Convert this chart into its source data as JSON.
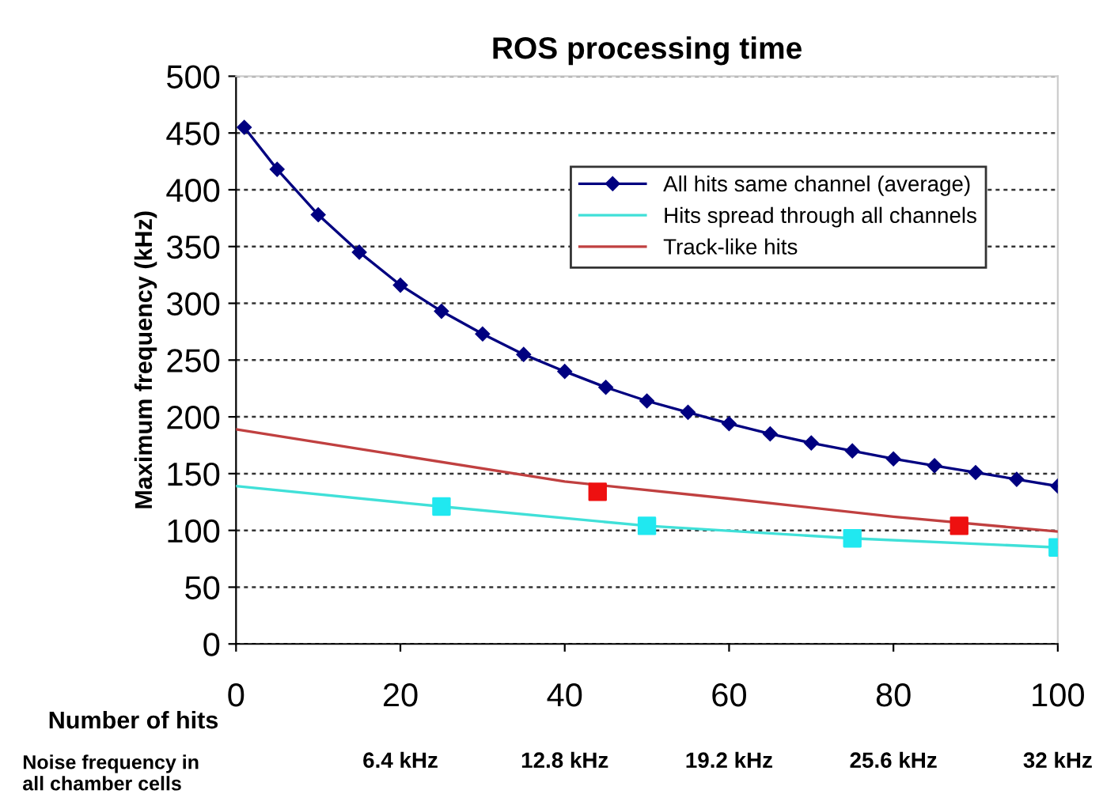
{
  "chart_data": {
    "type": "line",
    "title": "ROS processing time",
    "xlabel": "Number of hits",
    "ylabel": "Maximum frequency (kHz)",
    "x2label": "Noise frequency in\nall chamber cells",
    "xlim": [
      0,
      100
    ],
    "xticks": [
      0,
      20,
      40,
      60,
      80,
      100
    ],
    "ylim": [
      0,
      500
    ],
    "yticks": [
      0,
      50,
      100,
      150,
      200,
      250,
      300,
      350,
      400,
      450,
      500
    ],
    "x2lim": [
      0,
      32
    ],
    "x2ticks": [
      {
        "value": 6.4,
        "label": "6.4 kHz"
      },
      {
        "value": 12.8,
        "label": "12.8 kHz"
      },
      {
        "value": 19.2,
        "label": "19.2 kHz"
      },
      {
        "value": 25.6,
        "label": "25.6 kHz"
      },
      {
        "value": 32,
        "label": "32 kHz"
      }
    ],
    "grid": "y",
    "legend": "top",
    "series": [
      {
        "name": "All hits same channel (average)",
        "color": "#000080",
        "marker": "diamond",
        "x": [
          1,
          5,
          10,
          15,
          20,
          25,
          30,
          35,
          40,
          45,
          50,
          55,
          60,
          65,
          70,
          75,
          80,
          85,
          90,
          95,
          100
        ],
        "values": [
          455,
          418,
          378,
          345,
          316,
          293,
          273,
          255,
          240,
          226,
          214,
          204,
          194,
          185,
          177,
          170,
          163,
          157,
          151,
          145,
          139
        ]
      },
      {
        "name": "Hits spread through all channels",
        "color": "#40e0d8",
        "x": [
          0,
          25,
          50,
          75,
          100
        ],
        "values": [
          139,
          121,
          104,
          93,
          85
        ]
      },
      {
        "name": "Track-like hits",
        "color": "#c04040",
        "x": [
          0,
          20,
          40,
          60,
          80,
          100
        ],
        "values": [
          189,
          166,
          143,
          128,
          112,
          99
        ]
      },
      {
        "type": "scatter",
        "color": "#20e8f0",
        "marker": "square",
        "x": [
          25,
          50,
          75,
          100
        ],
        "values": [
          121,
          104,
          93,
          85
        ]
      },
      {
        "type": "scatter",
        "color": "#ee1010",
        "marker": "square",
        "x": [
          44,
          88
        ],
        "values": [
          134,
          104
        ]
      }
    ]
  }
}
